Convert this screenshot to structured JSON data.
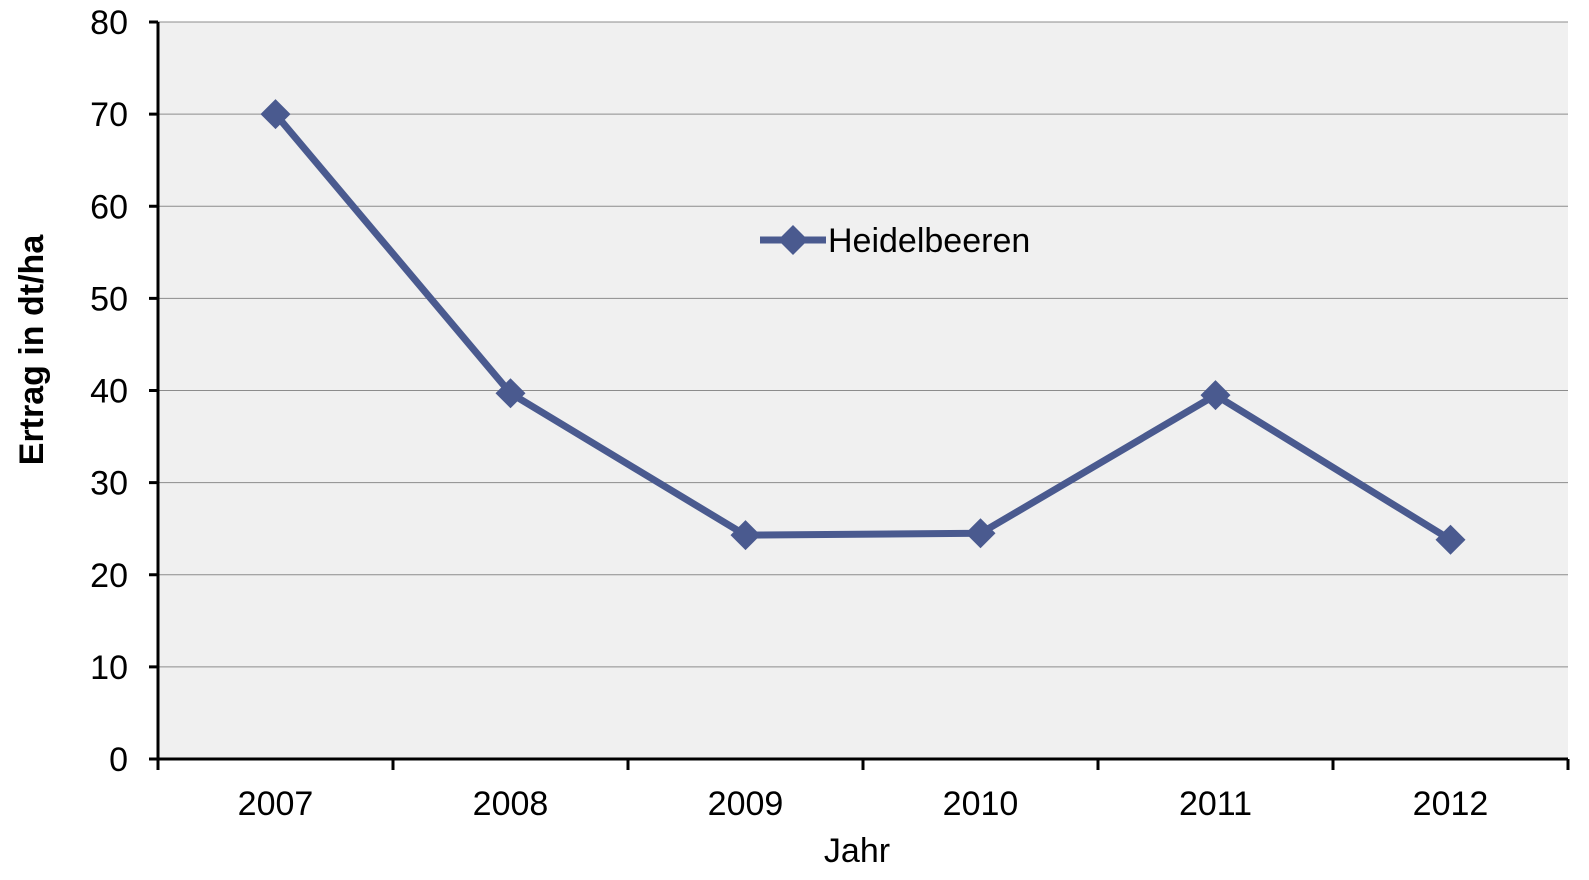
{
  "chart_data": {
    "type": "line",
    "categories": [
      "2007",
      "2008",
      "2009",
      "2010",
      "2011",
      "2012"
    ],
    "series": [
      {
        "name": "Heidelbeeren",
        "values": [
          70.0,
          39.7,
          24.3,
          24.5,
          39.5,
          23.8
        ]
      }
    ],
    "xlabel": "Jahr",
    "ylabel": "Ertrag in dt/ha",
    "ylim": [
      0,
      80
    ],
    "yticks": [
      0,
      10,
      20,
      30,
      40,
      50,
      60,
      70,
      80
    ],
    "grid": true,
    "legend_position": "top-center",
    "colors": {
      "series": "#4a5a8f",
      "plot_background": "#f0f0f0",
      "gridline": "#8c8c8c",
      "axis": "#000000"
    }
  }
}
